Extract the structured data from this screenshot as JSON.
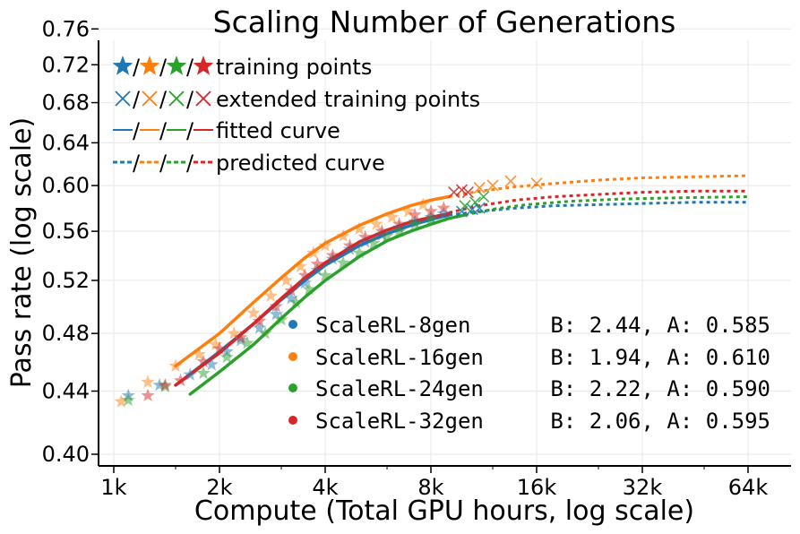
{
  "chart_data": {
    "type": "scatter",
    "title": "Scaling Number of Generations",
    "xlabel": "Compute (Total GPU hours, log scale)",
    "ylabel": "Pass rate (log scale)",
    "xscale": "log",
    "yscale": "log",
    "xlim": [
      900,
      76000
    ],
    "ylim": [
      0.4,
      0.76
    ],
    "xticks": [
      1000,
      2000,
      4000,
      8000,
      16000,
      32000,
      64000
    ],
    "xtick_labels": [
      "1k",
      "2k",
      "4k",
      "8k",
      "16k",
      "32k",
      "64k"
    ],
    "yticks": [
      0.4,
      0.44,
      0.48,
      0.52,
      0.56,
      0.6,
      0.64,
      0.68,
      0.72,
      0.76
    ],
    "ytick_labels": [
      "0.40",
      "0.44",
      "0.48",
      "0.52",
      "0.56",
      "0.60",
      "0.64",
      "0.68",
      "0.72",
      "0.76"
    ],
    "grid": true,
    "legend_markers": {
      "position": "top-left",
      "entries": [
        {
          "label": "training points",
          "style": "star"
        },
        {
          "label": "extended training points",
          "style": "x"
        },
        {
          "label": "fitted curve",
          "style": "solid"
        },
        {
          "label": "predicted curve",
          "style": "dashed"
        }
      ]
    },
    "legend_series": {
      "position": "bottom-right",
      "entries": [
        {
          "name": "ScaleRL-8gen",
          "params": "B: 2.44, A: 0.585",
          "color": "#1f77b4"
        },
        {
          "name": "ScaleRL-16gen",
          "params": "B: 1.94, A: 0.610",
          "color": "#ff7f0e"
        },
        {
          "name": "ScaleRL-24gen",
          "params": "B: 2.22, A: 0.590",
          "color": "#2ca02c"
        },
        {
          "name": "ScaleRL-32gen",
          "params": "B: 2.06, A: 0.595",
          "color": "#d62728"
        }
      ]
    },
    "series": [
      {
        "name": "ScaleRL-8gen",
        "color": "#1f77b4",
        "training_points": [
          [
            1100,
            0.437
          ],
          [
            1350,
            0.444
          ],
          [
            1650,
            0.451
          ],
          [
            1900,
            0.458
          ],
          [
            2100,
            0.467
          ],
          [
            2300,
            0.475
          ],
          [
            2600,
            0.484
          ],
          [
            2900,
            0.494
          ],
          [
            3200,
            0.506
          ],
          [
            3500,
            0.518
          ],
          [
            3800,
            0.528
          ],
          [
            4200,
            0.537
          ],
          [
            4700,
            0.545
          ],
          [
            5200,
            0.551
          ],
          [
            5800,
            0.557
          ],
          [
            6500,
            0.563
          ],
          [
            7200,
            0.568
          ],
          [
            8000,
            0.572
          ],
          [
            8700,
            0.575
          ]
        ],
        "extended_points": [
          [
            9800,
            0.577
          ],
          [
            10500,
            0.579
          ],
          [
            11000,
            0.58
          ]
        ],
        "fitted_curve": [
          [
            1600,
            0.449
          ],
          [
            2000,
            0.467
          ],
          [
            2500,
            0.487
          ],
          [
            3000,
            0.505
          ],
          [
            3500,
            0.52
          ],
          [
            4000,
            0.532
          ],
          [
            5000,
            0.548
          ],
          [
            6000,
            0.558
          ],
          [
            7000,
            0.565
          ],
          [
            8000,
            0.57
          ],
          [
            9000,
            0.574
          ]
        ],
        "predicted_curve": [
          [
            9000,
            0.574
          ],
          [
            11000,
            0.577
          ],
          [
            14000,
            0.58
          ],
          [
            18000,
            0.582
          ],
          [
            24000,
            0.583
          ],
          [
            32000,
            0.584
          ],
          [
            45000,
            0.585
          ],
          [
            64000,
            0.585
          ]
        ]
      },
      {
        "name": "ScaleRL-16gen",
        "color": "#ff7f0e",
        "training_points": [
          [
            1050,
            0.433
          ],
          [
            1250,
            0.446
          ],
          [
            1500,
            0.457
          ],
          [
            1750,
            0.465
          ],
          [
            1950,
            0.472
          ],
          [
            2200,
            0.48
          ],
          [
            2500,
            0.495
          ],
          [
            2800,
            0.508
          ],
          [
            3100,
            0.52
          ],
          [
            3400,
            0.531
          ],
          [
            3700,
            0.542
          ],
          [
            4000,
            0.548
          ],
          [
            4500,
            0.556
          ],
          [
            5000,
            0.562
          ],
          [
            5600,
            0.566
          ],
          [
            6200,
            0.572
          ],
          [
            6900,
            0.577
          ],
          [
            7600,
            0.583
          ]
        ],
        "extended_points": [
          [
            11000,
            0.598
          ],
          [
            12000,
            0.6
          ],
          [
            13500,
            0.604
          ],
          [
            16000,
            0.602
          ]
        ],
        "fitted_curve": [
          [
            1500,
            0.457
          ],
          [
            2000,
            0.48
          ],
          [
            2500,
            0.503
          ],
          [
            3000,
            0.522
          ],
          [
            3500,
            0.538
          ],
          [
            4000,
            0.55
          ],
          [
            5000,
            0.565
          ],
          [
            6000,
            0.575
          ],
          [
            7000,
            0.582
          ],
          [
            8000,
            0.587
          ],
          [
            9000,
            0.59
          ]
        ],
        "predicted_curve": [
          [
            9000,
            0.59
          ],
          [
            11000,
            0.595
          ],
          [
            14000,
            0.599
          ],
          [
            18000,
            0.602
          ],
          [
            24000,
            0.605
          ],
          [
            32000,
            0.607
          ],
          [
            45000,
            0.608
          ],
          [
            64000,
            0.609
          ]
        ]
      },
      {
        "name": "ScaleRL-24gen",
        "color": "#2ca02c",
        "training_points": [
          [
            1100,
            0.434
          ],
          [
            1400,
            0.443
          ],
          [
            1800,
            0.452
          ],
          [
            2100,
            0.463
          ],
          [
            2400,
            0.473
          ],
          [
            2700,
            0.48
          ],
          [
            3000,
            0.49
          ],
          [
            3300,
            0.503
          ],
          [
            3600,
            0.513
          ],
          [
            4000,
            0.524
          ],
          [
            4500,
            0.534
          ],
          [
            5000,
            0.542
          ],
          [
            5500,
            0.55
          ],
          [
            6000,
            0.556
          ],
          [
            6500,
            0.56
          ],
          [
            7200,
            0.566
          ],
          [
            8000,
            0.57
          ]
        ],
        "extended_points": [
          [
            10000,
            0.582
          ],
          [
            10700,
            0.585
          ],
          [
            11300,
            0.59
          ]
        ],
        "fitted_curve": [
          [
            1650,
            0.438
          ],
          [
            2000,
            0.453
          ],
          [
            2500,
            0.472
          ],
          [
            3000,
            0.491
          ],
          [
            3500,
            0.507
          ],
          [
            4000,
            0.52
          ],
          [
            5000,
            0.539
          ],
          [
            6000,
            0.552
          ],
          [
            7000,
            0.56
          ],
          [
            8000,
            0.566
          ],
          [
            9000,
            0.571
          ],
          [
            10000,
            0.574
          ]
        ],
        "predicted_curve": [
          [
            10000,
            0.574
          ],
          [
            12000,
            0.579
          ],
          [
            15000,
            0.583
          ],
          [
            20000,
            0.586
          ],
          [
            28000,
            0.588
          ],
          [
            40000,
            0.589
          ],
          [
            64000,
            0.59
          ]
        ]
      },
      {
        "name": "ScaleRL-32gen",
        "color": "#d62728",
        "training_points": [
          [
            1250,
            0.437
          ],
          [
            1400,
            0.444
          ],
          [
            1550,
            0.447
          ],
          [
            1800,
            0.46
          ],
          [
            2000,
            0.469
          ],
          [
            2300,
            0.477
          ],
          [
            2600,
            0.489
          ],
          [
            2900,
            0.5
          ],
          [
            3200,
            0.512
          ],
          [
            3500,
            0.524
          ],
          [
            3800,
            0.533
          ],
          [
            4200,
            0.54
          ],
          [
            4700,
            0.548
          ],
          [
            5200,
            0.555
          ],
          [
            5800,
            0.56
          ],
          [
            6500,
            0.566
          ],
          [
            7200,
            0.574
          ],
          [
            8000,
            0.577
          ],
          [
            8700,
            0.58
          ]
        ],
        "extended_points": [
          [
            9300,
            0.594
          ],
          [
            9800,
            0.596
          ],
          [
            10200,
            0.594
          ]
        ],
        "fitted_curve": [
          [
            1500,
            0.444
          ],
          [
            2000,
            0.466
          ],
          [
            2500,
            0.487
          ],
          [
            3000,
            0.506
          ],
          [
            3500,
            0.522
          ],
          [
            4000,
            0.534
          ],
          [
            5000,
            0.551
          ],
          [
            6000,
            0.561
          ],
          [
            7000,
            0.568
          ],
          [
            8000,
            0.572
          ],
          [
            9000,
            0.575
          ]
        ],
        "predicted_curve": [
          [
            9000,
            0.576
          ],
          [
            11000,
            0.582
          ],
          [
            14000,
            0.587
          ],
          [
            18000,
            0.59
          ],
          [
            24000,
            0.592
          ],
          [
            32000,
            0.594
          ],
          [
            45000,
            0.595
          ],
          [
            64000,
            0.595
          ]
        ]
      }
    ]
  }
}
